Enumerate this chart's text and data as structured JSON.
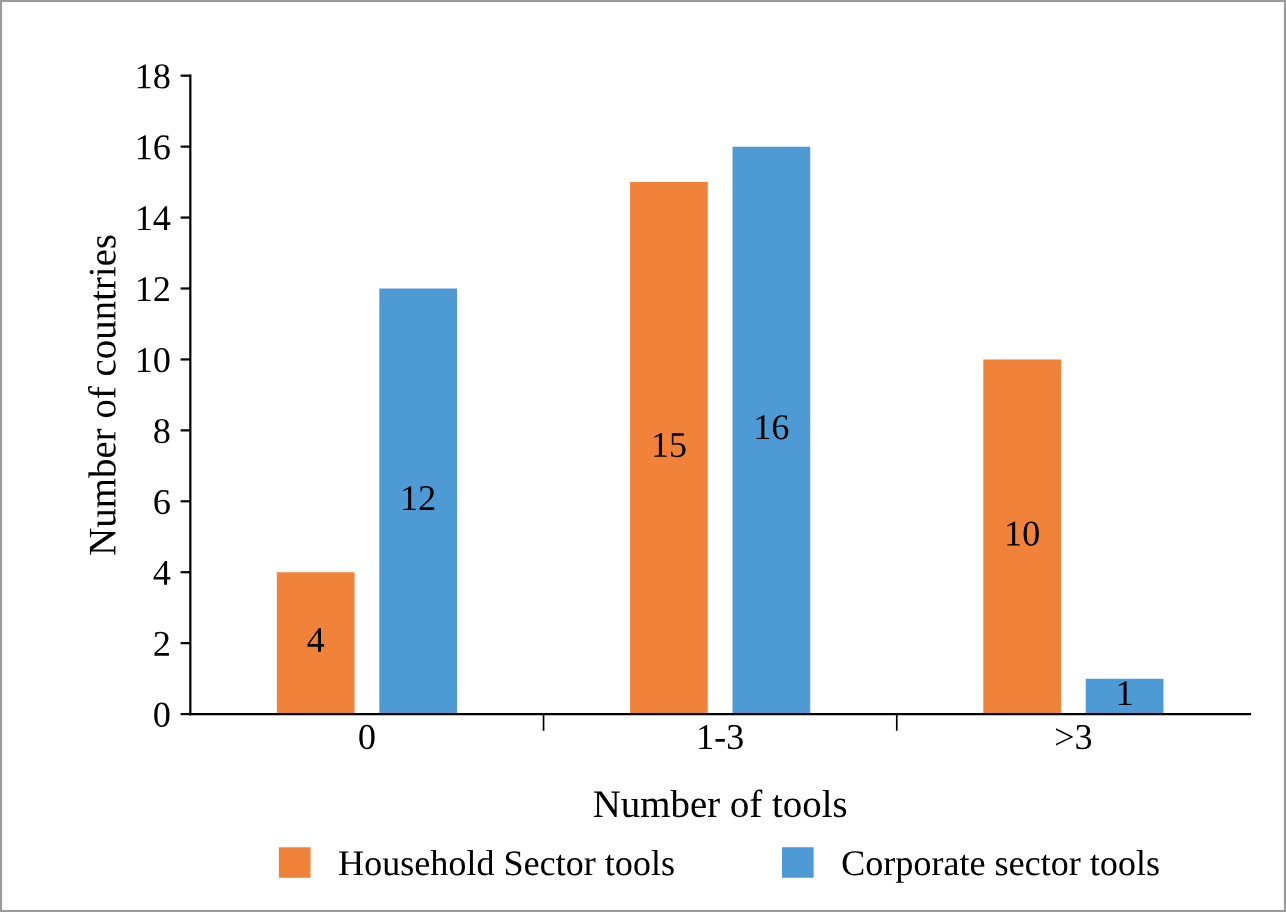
{
  "chart_data": {
    "type": "bar",
    "xlabel": "Number of tools",
    "ylabel": "Number of countries",
    "categories": [
      "0",
      "1-3",
      ">3"
    ],
    "series": [
      {
        "name": "Household Sector tools",
        "color": "#f0823a",
        "values": [
          4,
          15,
          10
        ]
      },
      {
        "name": "Corporate sector tools",
        "color": "#4e9ad4",
        "values": [
          12,
          16,
          1
        ]
      }
    ],
    "ylim": [
      0,
      18
    ],
    "yticks": [
      0,
      2,
      4,
      6,
      8,
      10,
      12,
      14,
      16,
      18
    ],
    "grid": false,
    "legend": "bottom",
    "data_labels": true
  }
}
